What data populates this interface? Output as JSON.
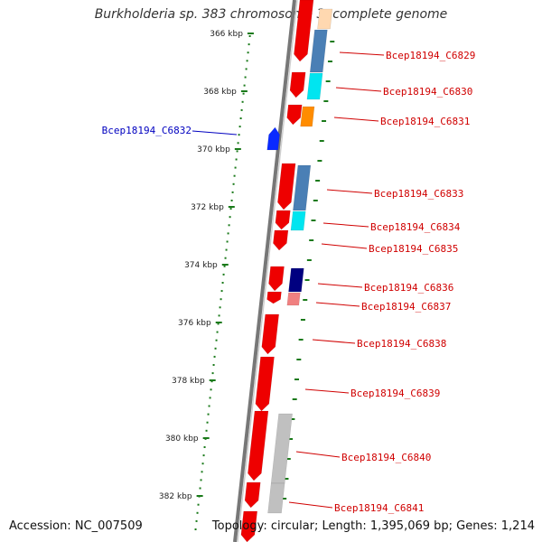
{
  "title": "Burkholderia sp. 383 chromosome 3, complete genome",
  "accession": "Accession: NC_007509",
  "info": "Topology: circular; Length: 1,395,069 bp; Genes: 1,214",
  "colors": {
    "backbone": "#888888",
    "tick": "#1a7a1a",
    "forward_label": "#d00000",
    "reverse_label": "#0000c0",
    "red": "#ee0000",
    "blue": "#0a2aff",
    "steel": "#4a7fb5",
    "cyan": "#00e5f0",
    "orange": "#ff8c00",
    "navy": "#000080",
    "pink": "#f08080",
    "gray": "#c0c0c0",
    "peach": "#ffd8b0"
  },
  "scale": {
    "labels": [
      "366 kbp",
      "368 kbp",
      "370 kbp",
      "372 kbp",
      "374 kbp",
      "376 kbp",
      "378 kbp",
      "380 kbp",
      "382 kbp"
    ]
  },
  "genes": [
    {
      "name": "Bcep18194_C6829",
      "side": "right"
    },
    {
      "name": "Bcep18194_C6830",
      "side": "right"
    },
    {
      "name": "Bcep18194_C6831",
      "side": "right"
    },
    {
      "name": "Bcep18194_C6832",
      "side": "left"
    },
    {
      "name": "Bcep18194_C6833",
      "side": "right"
    },
    {
      "name": "Bcep18194_C6834",
      "side": "right"
    },
    {
      "name": "Bcep18194_C6835",
      "side": "right"
    },
    {
      "name": "Bcep18194_C6836",
      "side": "right"
    },
    {
      "name": "Bcep18194_C6837",
      "side": "right"
    },
    {
      "name": "Bcep18194_C6838",
      "side": "right"
    },
    {
      "name": "Bcep18194_C6839",
      "side": "right"
    },
    {
      "name": "Bcep18194_C6840",
      "side": "right"
    },
    {
      "name": "Bcep18194_C6841",
      "side": "right"
    }
  ]
}
